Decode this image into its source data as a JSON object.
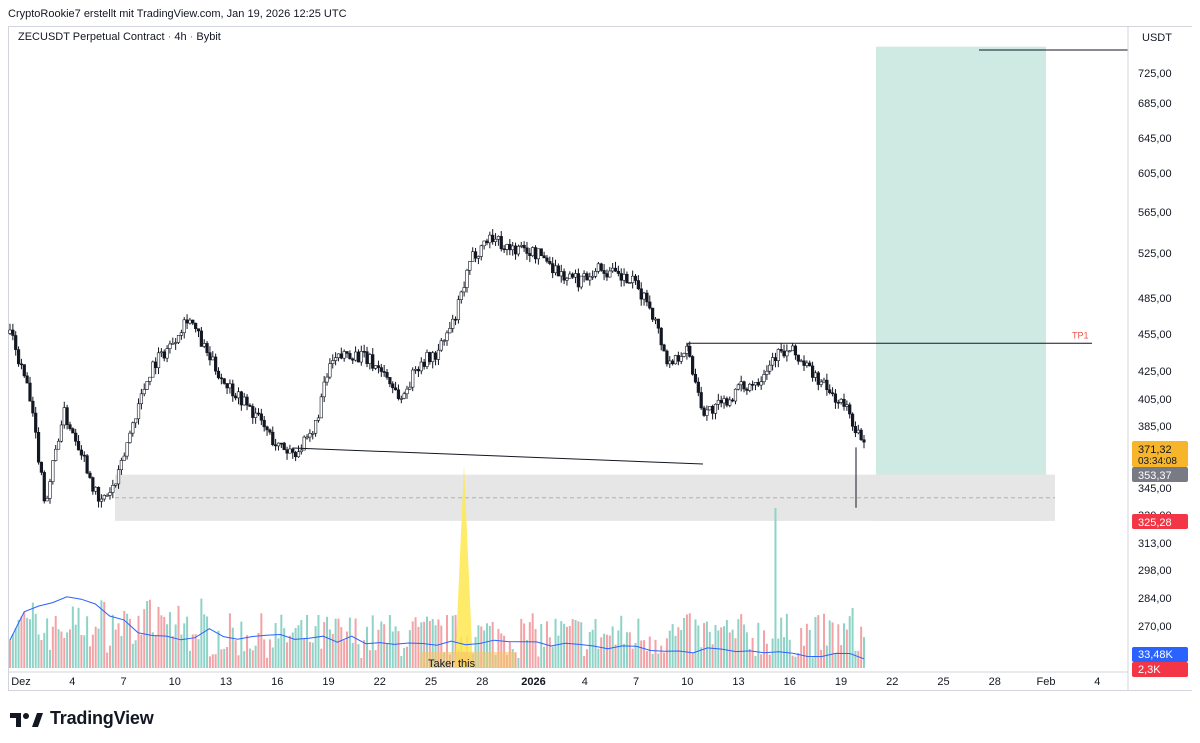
{
  "header": {
    "caption": "CryptoRookie7 erstellt mit TradingView.com, Jan 19, 2026 12:25 UTC",
    "symbol": "ZECUSDT Perpetual Contract",
    "timeframe": "4h",
    "exchange": "Bybit"
  },
  "footer": {
    "brand": "TradingView"
  },
  "colors": {
    "up": "#26a69a",
    "down": "#ef5350",
    "line": "#131722",
    "target_zone": "#cfeae3",
    "stop_zone": "#f0cacd",
    "support_zone": "#e6e6e6",
    "ma": "#2962ff",
    "highlight": "#fde84f",
    "last_price": "#f7b52c"
  },
  "chart_data": {
    "type": "candlestick",
    "title": "ZECUSDT Perpetual Contract · 4h · Bybit",
    "y_axis": {
      "unit": "USDT",
      "scale": "log",
      "ticks": [
        "725,00",
        "685,00",
        "645,00",
        "605,00",
        "565,00",
        "525,00",
        "485,00",
        "455,00",
        "425,00",
        "405,00",
        "385,00",
        "345,00",
        "320,00",
        "313,00",
        "298,00",
        "284,00",
        "270,00"
      ]
    },
    "x_axis": {
      "ticks": [
        "Dez",
        "4",
        "7",
        "10",
        "13",
        "16",
        "19",
        "22",
        "25",
        "28",
        "2026",
        "4",
        "7",
        "10",
        "13",
        "16",
        "19",
        "22",
        "25",
        "28",
        "Feb",
        "4"
      ]
    },
    "price_labels": [
      {
        "value": "371,32",
        "sub": "03:34:08",
        "kind": "last"
      },
      {
        "value": "353,37",
        "kind": "gray"
      },
      {
        "value": "325,28",
        "kind": "stop"
      }
    ],
    "volume_labels": [
      {
        "value": "33,48K",
        "kind": "ma"
      },
      {
        "value": "2,3K",
        "kind": "vol"
      }
    ],
    "annotations": {
      "tp1_label": "TP1",
      "tp1_price": 447,
      "volume_note": "Taker this",
      "trade_entry": 353.37,
      "trade_stop": 325.28,
      "trade_target": 760,
      "support_zone": [
        325.28,
        353.37
      ]
    },
    "price_path": [
      [
        "Dez",
        455
      ],
      [
        "2",
        412
      ],
      [
        "3",
        335
      ],
      [
        "4",
        395
      ],
      [
        "5",
        370
      ],
      [
        "7",
        335
      ],
      [
        "8",
        348
      ],
      [
        "9",
        392
      ],
      [
        "10",
        430
      ],
      [
        "11",
        445
      ],
      [
        "12",
        470
      ],
      [
        "13",
        440
      ],
      [
        "14",
        418
      ],
      [
        "15",
        405
      ],
      [
        "16",
        390
      ],
      [
        "17",
        372
      ],
      [
        "18",
        368
      ],
      [
        "19",
        378
      ],
      [
        "20",
        430
      ],
      [
        "21",
        440
      ],
      [
        "22",
        435
      ],
      [
        "23",
        425
      ],
      [
        "24",
        404
      ],
      [
        "25",
        432
      ],
      [
        "26",
        438
      ],
      [
        "27",
        466
      ],
      [
        "28",
        522
      ],
      [
        "29",
        542
      ],
      [
        "30",
        530
      ],
      [
        "31",
        528
      ],
      [
        "2026",
        522
      ],
      [
        "2",
        505
      ],
      [
        "3",
        500
      ],
      [
        "4",
        512
      ],
      [
        "5",
        505
      ],
      [
        "6",
        498
      ],
      [
        "7",
        478
      ],
      [
        "8",
        430
      ],
      [
        "9",
        444
      ],
      [
        "10",
        395
      ],
      [
        "11",
        400
      ],
      [
        "12",
        412
      ],
      [
        "13",
        418
      ],
      [
        "14",
        438
      ],
      [
        "15",
        440
      ],
      [
        "16",
        425
      ],
      [
        "17",
        410
      ],
      [
        "18",
        398
      ],
      [
        "19",
        371.32
      ]
    ],
    "volume_ma_level": 33.48
  }
}
